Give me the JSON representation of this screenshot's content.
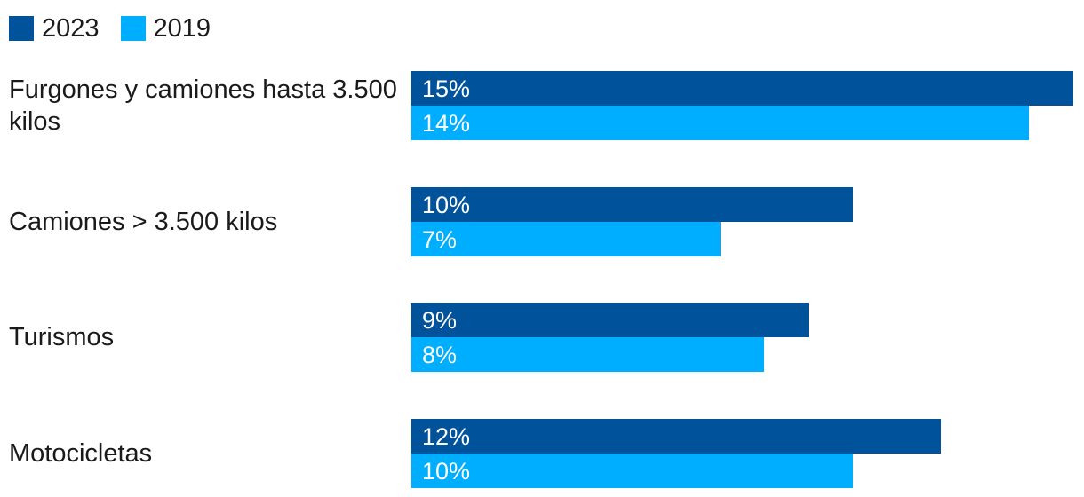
{
  "colors": {
    "series_2023": "#00529B",
    "series_2019": "#00AEFF",
    "text": "#1A1A1A",
    "bar_label_text": "#FFFFFF",
    "background": "#FFFFFF"
  },
  "legend": {
    "items": [
      {
        "label": "2023",
        "color_key": "series_2023"
      },
      {
        "label": "2019",
        "color_key": "series_2019"
      }
    ]
  },
  "chart_data": {
    "type": "bar",
    "orientation": "horizontal",
    "title": "",
    "xlabel": "",
    "ylabel": "",
    "categories": [
      "Furgones y camiones hasta 3.500 kilos",
      "Camiones > 3.500 kilos",
      "Turismos",
      "Motocicletas"
    ],
    "series": [
      {
        "name": "2023",
        "color": "#00529B",
        "values": [
          15,
          10,
          9,
          12
        ]
      },
      {
        "name": "2019",
        "color": "#00AEFF",
        "values": [
          14,
          7,
          8,
          10
        ]
      }
    ],
    "value_suffix": "%",
    "bar_labels_inside": true,
    "xlim": [
      0,
      15
    ],
    "grid": false,
    "legend_position": "top-left"
  }
}
